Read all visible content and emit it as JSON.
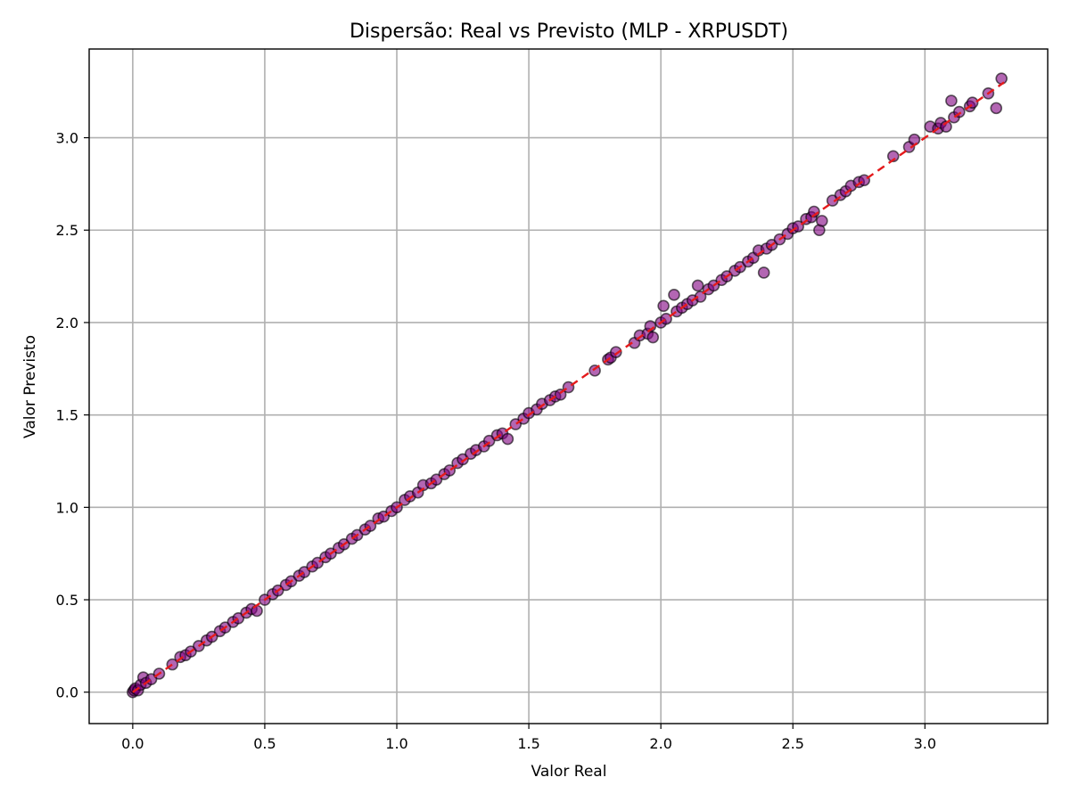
{
  "chart_data": {
    "type": "scatter",
    "title": "Dispersão: Real vs Previsto (MLP - XRPUSDT)",
    "xlabel": "Valor Real",
    "ylabel": "Valor Previsto",
    "xlim": [
      -0.165,
      3.465
    ],
    "ylim": [
      -0.17,
      3.48
    ],
    "xticks": [
      0.0,
      0.5,
      1.0,
      1.5,
      2.0,
      2.5,
      3.0
    ],
    "xtick_labels": [
      "0.0",
      "0.5",
      "1.0",
      "1.5",
      "2.0",
      "2.5",
      "3.0"
    ],
    "yticks": [
      0.0,
      0.5,
      1.0,
      1.5,
      2.0,
      2.5,
      3.0
    ],
    "ytick_labels": [
      "0.0",
      "0.5",
      "1.0",
      "1.5",
      "2.0",
      "2.5",
      "3.0"
    ],
    "grid": true,
    "reference_line": {
      "style": "dashed",
      "color": "#e41a1c",
      "from": [
        0.0,
        0.0
      ],
      "to": [
        3.3,
        3.3
      ]
    },
    "colors": {
      "point_fill": "#800080",
      "point_edge": "#000000",
      "reference_line": "#e41a1c"
    },
    "points": [
      [
        0.0,
        0.0
      ],
      [
        0.005,
        0.01
      ],
      [
        0.01,
        0.02
      ],
      [
        0.02,
        0.01
      ],
      [
        0.03,
        0.04
      ],
      [
        0.04,
        0.08
      ],
      [
        0.05,
        0.05
      ],
      [
        0.07,
        0.07
      ],
      [
        0.1,
        0.1
      ],
      [
        0.15,
        0.15
      ],
      [
        0.18,
        0.19
      ],
      [
        0.2,
        0.2
      ],
      [
        0.22,
        0.22
      ],
      [
        0.25,
        0.25
      ],
      [
        0.28,
        0.28
      ],
      [
        0.3,
        0.3
      ],
      [
        0.33,
        0.33
      ],
      [
        0.35,
        0.35
      ],
      [
        0.38,
        0.38
      ],
      [
        0.4,
        0.4
      ],
      [
        0.43,
        0.43
      ],
      [
        0.45,
        0.45
      ],
      [
        0.47,
        0.44
      ],
      [
        0.5,
        0.5
      ],
      [
        0.53,
        0.53
      ],
      [
        0.55,
        0.55
      ],
      [
        0.58,
        0.58
      ],
      [
        0.6,
        0.6
      ],
      [
        0.63,
        0.63
      ],
      [
        0.65,
        0.65
      ],
      [
        0.68,
        0.68
      ],
      [
        0.7,
        0.7
      ],
      [
        0.73,
        0.73
      ],
      [
        0.75,
        0.75
      ],
      [
        0.78,
        0.78
      ],
      [
        0.8,
        0.8
      ],
      [
        0.83,
        0.83
      ],
      [
        0.85,
        0.85
      ],
      [
        0.88,
        0.88
      ],
      [
        0.9,
        0.9
      ],
      [
        0.93,
        0.94
      ],
      [
        0.95,
        0.95
      ],
      [
        0.98,
        0.98
      ],
      [
        1.0,
        1.0
      ],
      [
        1.03,
        1.04
      ],
      [
        1.05,
        1.06
      ],
      [
        1.08,
        1.08
      ],
      [
        1.1,
        1.12
      ],
      [
        1.13,
        1.13
      ],
      [
        1.15,
        1.15
      ],
      [
        1.18,
        1.18
      ],
      [
        1.2,
        1.2
      ],
      [
        1.23,
        1.24
      ],
      [
        1.25,
        1.26
      ],
      [
        1.28,
        1.29
      ],
      [
        1.3,
        1.31
      ],
      [
        1.33,
        1.33
      ],
      [
        1.35,
        1.36
      ],
      [
        1.38,
        1.39
      ],
      [
        1.4,
        1.4
      ],
      [
        1.42,
        1.37
      ],
      [
        1.45,
        1.45
      ],
      [
        1.48,
        1.48
      ],
      [
        1.5,
        1.51
      ],
      [
        1.53,
        1.53
      ],
      [
        1.55,
        1.56
      ],
      [
        1.58,
        1.58
      ],
      [
        1.6,
        1.6
      ],
      [
        1.62,
        1.61
      ],
      [
        1.65,
        1.65
      ],
      [
        1.75,
        1.74
      ],
      [
        1.8,
        1.8
      ],
      [
        1.81,
        1.81
      ],
      [
        1.83,
        1.84
      ],
      [
        1.9,
        1.89
      ],
      [
        1.92,
        1.93
      ],
      [
        1.95,
        1.94
      ],
      [
        1.96,
        1.98
      ],
      [
        1.97,
        1.92
      ],
      [
        2.0,
        2.0
      ],
      [
        2.01,
        2.09
      ],
      [
        2.02,
        2.02
      ],
      [
        2.05,
        2.15
      ],
      [
        2.06,
        2.06
      ],
      [
        2.08,
        2.08
      ],
      [
        2.1,
        2.1
      ],
      [
        2.12,
        2.12
      ],
      [
        2.14,
        2.2
      ],
      [
        2.15,
        2.14
      ],
      [
        2.18,
        2.18
      ],
      [
        2.2,
        2.2
      ],
      [
        2.23,
        2.23
      ],
      [
        2.25,
        2.25
      ],
      [
        2.28,
        2.28
      ],
      [
        2.3,
        2.3
      ],
      [
        2.33,
        2.33
      ],
      [
        2.35,
        2.35
      ],
      [
        2.37,
        2.39
      ],
      [
        2.39,
        2.27
      ],
      [
        2.4,
        2.4
      ],
      [
        2.42,
        2.42
      ],
      [
        2.45,
        2.45
      ],
      [
        2.48,
        2.48
      ],
      [
        2.5,
        2.51
      ],
      [
        2.52,
        2.52
      ],
      [
        2.55,
        2.56
      ],
      [
        2.57,
        2.57
      ],
      [
        2.58,
        2.6
      ],
      [
        2.6,
        2.5
      ],
      [
        2.61,
        2.55
      ],
      [
        2.65,
        2.66
      ],
      [
        2.68,
        2.69
      ],
      [
        2.7,
        2.71
      ],
      [
        2.72,
        2.74
      ],
      [
        2.75,
        2.76
      ],
      [
        2.77,
        2.77
      ],
      [
        2.88,
        2.9
      ],
      [
        2.94,
        2.95
      ],
      [
        2.96,
        2.99
      ],
      [
        3.02,
        3.06
      ],
      [
        3.05,
        3.05
      ],
      [
        3.06,
        3.08
      ],
      [
        3.08,
        3.06
      ],
      [
        3.1,
        3.2
      ],
      [
        3.11,
        3.11
      ],
      [
        3.13,
        3.14
      ],
      [
        3.17,
        3.17
      ],
      [
        3.18,
        3.19
      ],
      [
        3.24,
        3.24
      ],
      [
        3.27,
        3.16
      ],
      [
        3.29,
        3.32
      ]
    ]
  }
}
